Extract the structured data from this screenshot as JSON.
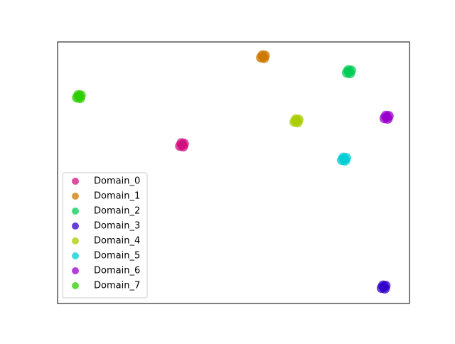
{
  "chart_data": {
    "type": "scatter",
    "xlim": [
      0,
      100
    ],
    "ylim": [
      0,
      100
    ],
    "legend": "lower left",
    "series": [
      {
        "name": "Domain_0",
        "color": "#d0107f",
        "x": [
          34.8,
          35.9,
          35.2,
          35.7,
          35.4
        ],
        "y": [
          60.2,
          61.1,
          61.3,
          60.0,
          60.6
        ]
      },
      {
        "name": "Domain_1",
        "color": "#cc7a00",
        "x": [
          57.8,
          58.9,
          58.2,
          58.7,
          58.4
        ],
        "y": [
          94.0,
          94.8,
          94.9,
          93.8,
          94.3
        ]
      },
      {
        "name": "Domain_2",
        "color": "#00cc55",
        "x": [
          82.2,
          83.4,
          82.6,
          83.1,
          82.8
        ],
        "y": [
          88.2,
          89.1,
          89.2,
          88.0,
          88.6
        ]
      },
      {
        "name": "Domain_3",
        "color": "#3300cc",
        "x": [
          92.1,
          93.2,
          92.5,
          93.0,
          92.7
        ],
        "y": [
          5.9,
          6.8,
          6.9,
          5.7,
          6.3
        ]
      },
      {
        "name": "Domain_4",
        "color": "#a8cc00",
        "x": [
          67.3,
          68.5,
          67.7,
          68.2,
          67.9
        ],
        "y": [
          69.4,
          70.3,
          70.4,
          69.2,
          69.8
        ]
      },
      {
        "name": "Domain_5",
        "color": "#00ccd4",
        "x": [
          80.8,
          82.0,
          81.2,
          81.7,
          81.4
        ],
        "y": [
          54.8,
          55.7,
          55.8,
          54.6,
          55.2
        ]
      },
      {
        "name": "Domain_6",
        "color": "#9900cc",
        "x": [
          92.9,
          94.1,
          93.3,
          93.8,
          93.5
        ],
        "y": [
          70.8,
          71.7,
          71.8,
          70.6,
          71.2
        ]
      },
      {
        "name": "Domain_7",
        "color": "#2ecc00",
        "x": [
          5.5,
          6.6,
          5.9,
          6.4,
          6.1
        ],
        "y": [
          78.7,
          79.6,
          79.7,
          78.5,
          79.1
        ]
      }
    ]
  }
}
